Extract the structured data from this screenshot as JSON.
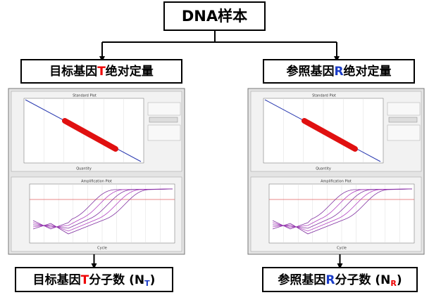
{
  "title": "DNA样本",
  "branches": [
    {
      "quant": {
        "prefix": "目标基因",
        "gene": "T",
        "suffix": "绝对定量"
      },
      "panel": {
        "standard_title": "Standard Plot",
        "standard_xlabel": "Quantity",
        "amp_title": "Amplification Plot",
        "amp_xlabel": "Cycle"
      },
      "result": {
        "prefix": "目标基因",
        "gene": "T",
        "middle": "分子数 (N",
        "sub": "T",
        "end": ")"
      }
    },
    {
      "quant": {
        "prefix": "参照基因",
        "gene": "R",
        "suffix": "绝对定量"
      },
      "panel": {
        "standard_title": "Standard Plot",
        "standard_xlabel": "Quantity",
        "amp_title": "Amplification Plot",
        "amp_xlabel": "Cycle"
      },
      "result": {
        "prefix": "参照基因",
        "gene": "R",
        "middle": "分子数 (N",
        "sub": "R",
        "end": ")"
      }
    }
  ]
}
